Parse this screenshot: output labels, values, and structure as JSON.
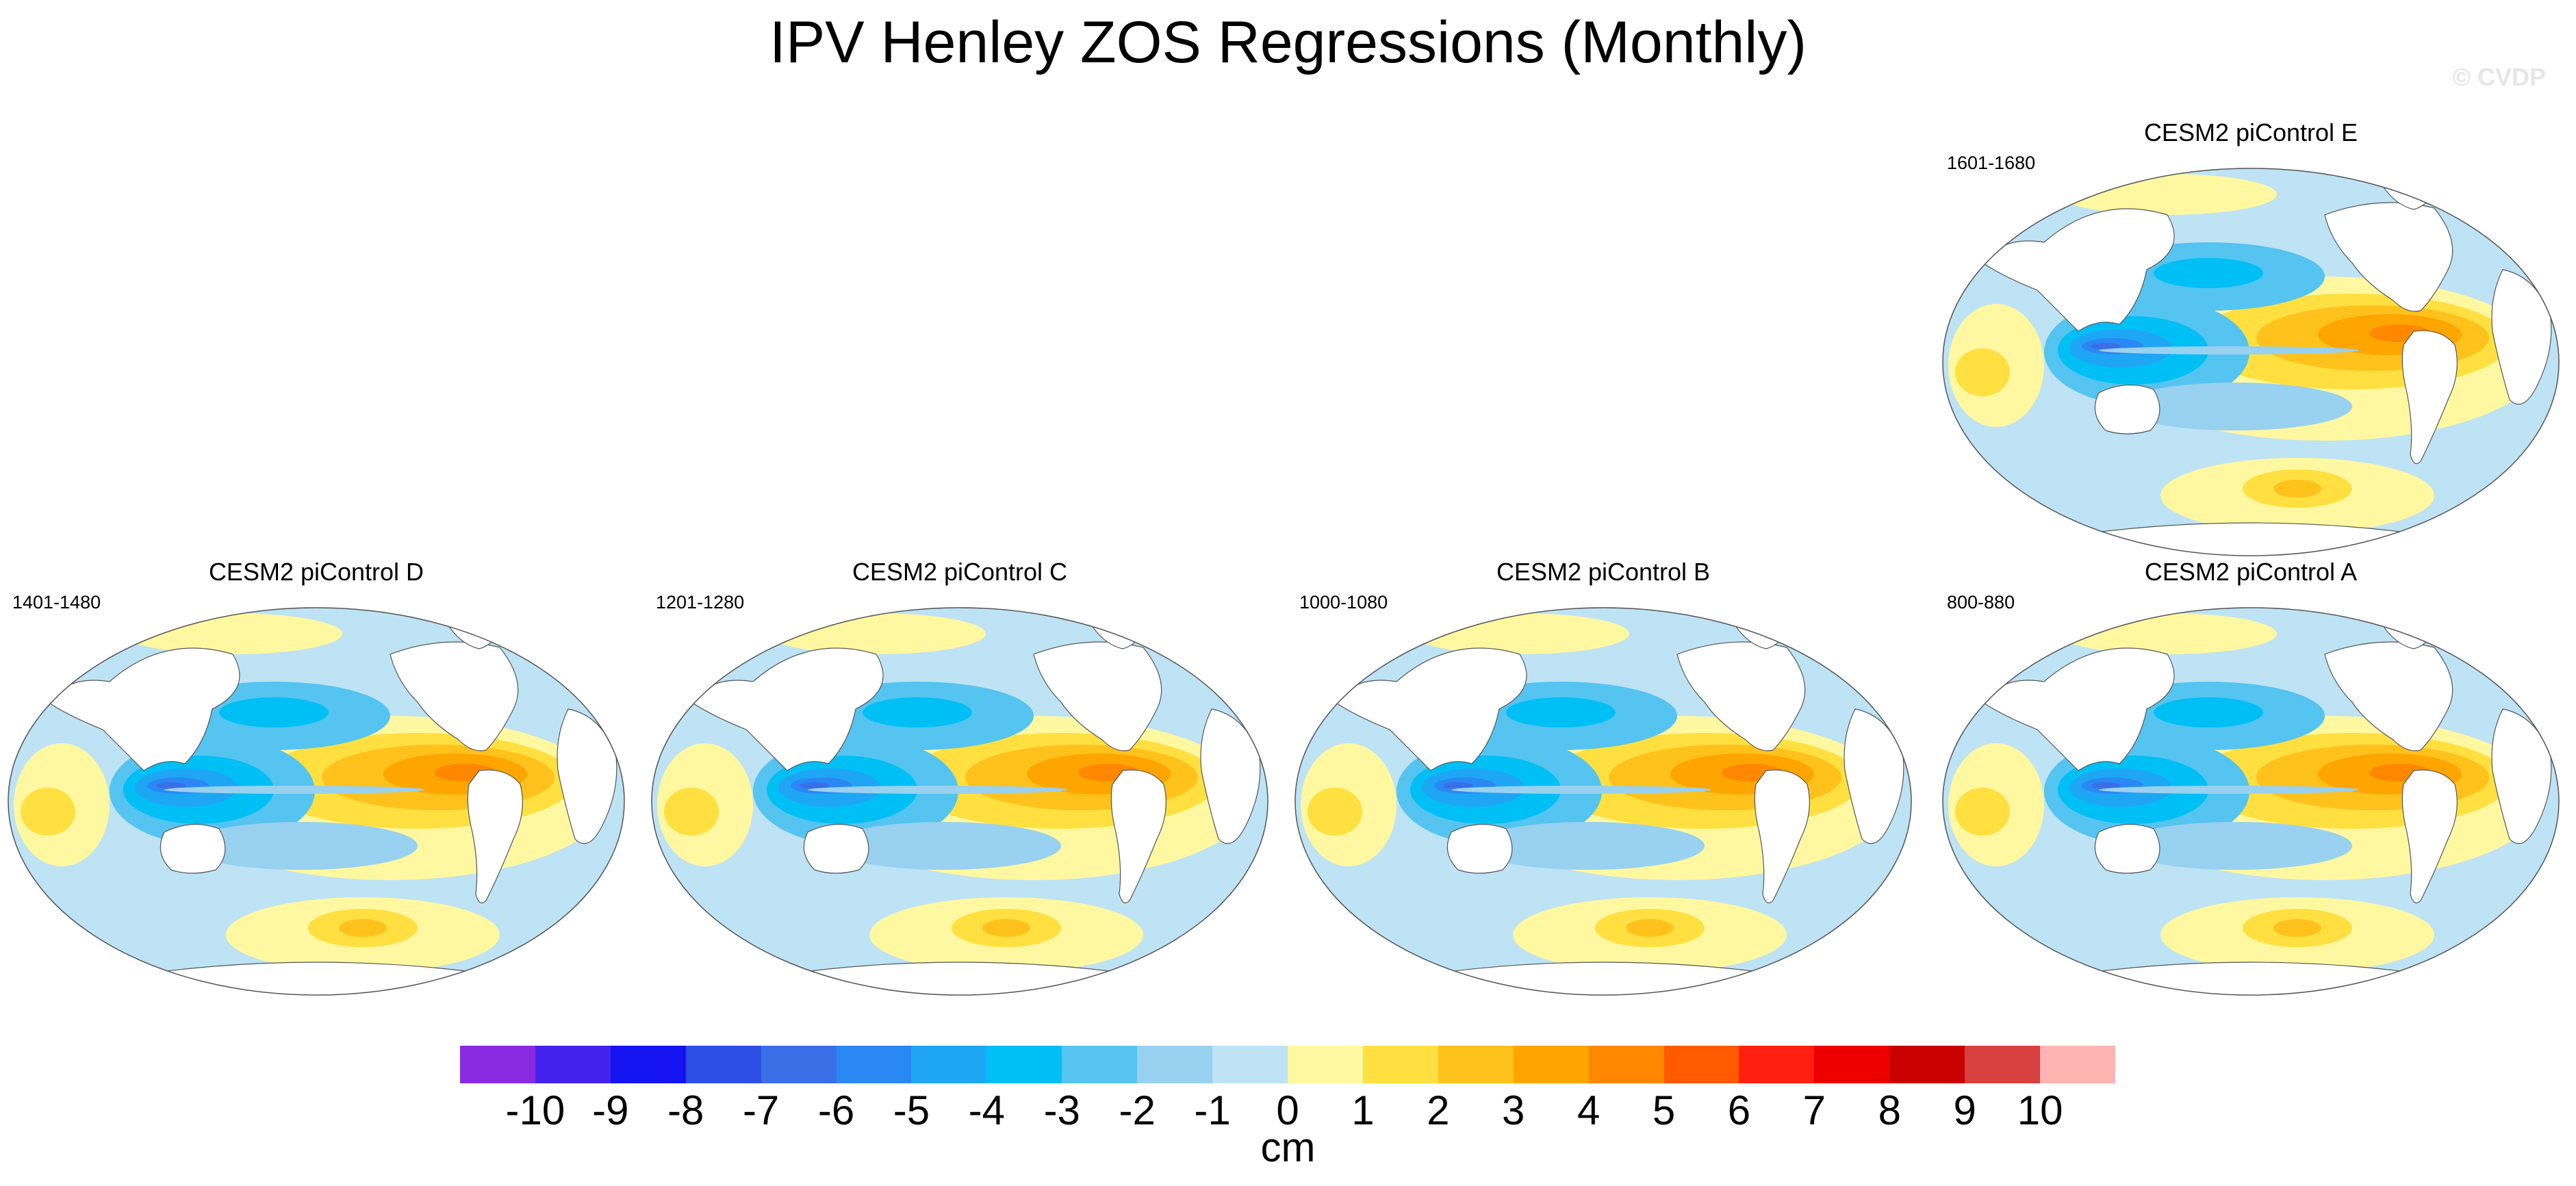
{
  "title": "IPV Henley ZOS Regressions (Monthly)",
  "watermark": "© CVDP",
  "panels": [
    {
      "title": "CESM2 piControl E",
      "period": "1601-1680"
    },
    {
      "title": "CESM2 piControl D",
      "period": "1401-1480"
    },
    {
      "title": "CESM2 piControl C",
      "period": "1201-1280"
    },
    {
      "title": "CESM2 piControl B",
      "period": "1000-1080"
    },
    {
      "title": "CESM2 piControl A",
      "period": "800-880"
    }
  ],
  "colorbar": {
    "colors": [
      "#8a2be2",
      "#4422ee",
      "#1414f0",
      "#2e4fe6",
      "#3a6fe8",
      "#2a88f5",
      "#1ea6f5",
      "#00bff5",
      "#55c4f0",
      "#99d1f0",
      "#bde3f5",
      "#fff8a0",
      "#ffe040",
      "#ffc21c",
      "#ffa500",
      "#ff8800",
      "#ff5a00",
      "#ff2010",
      "#ee0000",
      "#c80000",
      "#d94040",
      "#ffb3b3"
    ],
    "labels": [
      "-10",
      "-9",
      "-8",
      "-7",
      "-6",
      "-5",
      "-4",
      "-3",
      "-2",
      "-1",
      "0",
      "1",
      "2",
      "3",
      "4",
      "5",
      "6",
      "7",
      "8",
      "9",
      "10"
    ],
    "units": "cm"
  }
}
